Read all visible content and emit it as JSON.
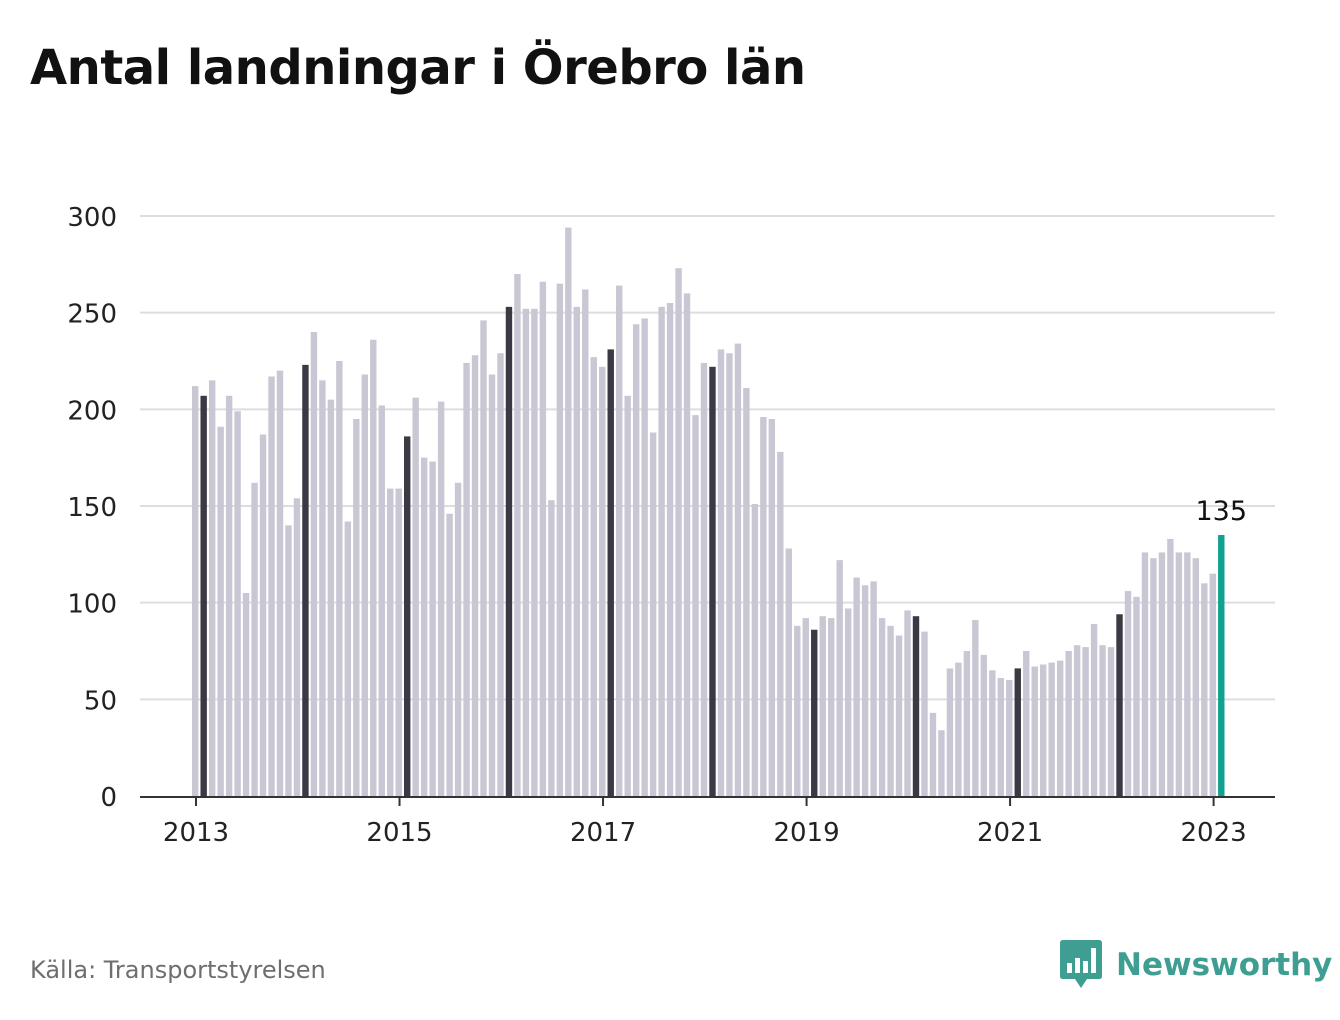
{
  "title": "Antal landningar i Örebro län",
  "source": "Källa: Transportstyrelsen",
  "brand": {
    "name": "Newsworthy",
    "color": "#3d9e91",
    "icon": "bar-chart-speech-bubble-icon"
  },
  "colors": {
    "bar": "#c8c7d3",
    "january_bar": "#3a3944",
    "latest_bar": "#12a190",
    "grid": "#dddde3",
    "axis": "#333333",
    "text": "#222222"
  },
  "chart_data": {
    "type": "bar",
    "title": "Antal landningar i Örebro län",
    "xlabel": "",
    "ylabel": "",
    "ylim": [
      0,
      300
    ],
    "yticks": [
      0,
      50,
      100,
      150,
      200,
      250,
      300
    ],
    "xtick_labels": [
      "2013",
      "2015",
      "2017",
      "2019",
      "2021",
      "2023"
    ],
    "grid": true,
    "highlight": "January of each year shown in dark; latest month highlighted and labelled",
    "latest_label": "135",
    "series": [
      {
        "values": [
          212,
          207,
          215,
          191,
          207,
          199,
          105,
          162,
          187,
          217,
          220,
          140,
          154,
          223,
          240,
          215,
          205,
          225,
          142,
          195,
          218,
          236,
          202,
          159,
          159,
          186,
          206,
          175,
          173,
          204,
          146,
          162,
          224,
          228,
          246,
          218,
          229,
          253,
          270,
          252,
          252,
          266,
          153,
          265,
          294,
          253,
          262,
          227,
          222,
          231,
          264,
          207,
          244,
          247,
          188,
          253,
          255,
          273,
          260,
          197,
          224,
          222,
          231,
          229,
          234,
          211,
          151,
          196,
          195,
          178,
          128,
          88,
          92,
          86,
          93,
          92,
          122,
          97,
          113,
          109,
          111,
          92,
          88,
          83,
          96,
          93,
          85,
          43,
          34,
          66,
          69,
          75,
          91,
          73,
          65,
          61,
          60,
          66,
          75,
          67,
          68,
          69,
          70,
          75,
          78,
          77,
          89,
          78,
          77,
          94,
          106,
          103,
          126,
          123,
          126,
          133,
          126,
          126,
          123,
          110,
          115,
          135
        ]
      }
    ]
  }
}
